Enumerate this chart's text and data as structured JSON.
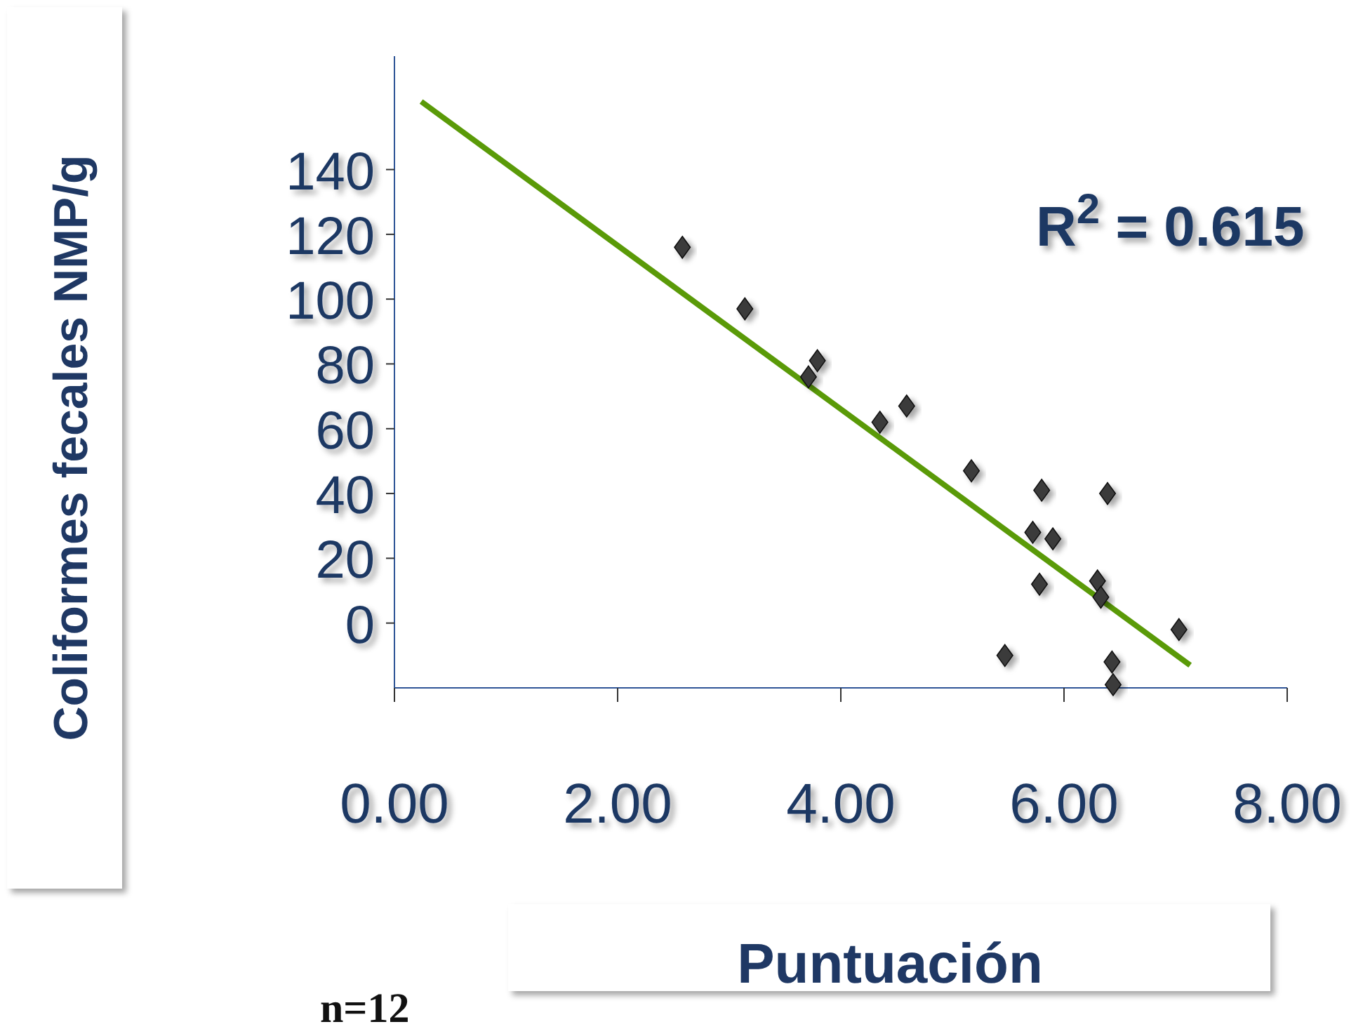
{
  "chart_data": {
    "type": "scatter",
    "xlabel": "Puntuación",
    "ylabel": "Coliformes fecales NMP/g",
    "annotations": [
      "R$^{2}$ = 0.615",
      "n=12"
    ],
    "xlim": [
      0,
      8
    ],
    "ylim": [
      -20,
      175
    ],
    "xticks": [
      {
        "value": 0,
        "label": "0.00"
      },
      {
        "value": 2,
        "label": "2.00"
      },
      {
        "value": 4,
        "label": "4.00"
      },
      {
        "value": 6,
        "label": "6.00"
      },
      {
        "value": 8,
        "label": "8.00"
      }
    ],
    "yticks": [
      0,
      20,
      40,
      60,
      80,
      100,
      120,
      140
    ],
    "grid": false,
    "series": [
      {
        "color": "#3a3a3a",
        "marker": "diamond",
        "x": [
          2.58,
          3.14,
          3.79,
          3.71,
          4.35,
          4.59,
          5.17,
          5.8,
          5.72,
          5.9,
          5.78,
          6.39,
          6.3,
          6.33,
          7.03,
          5.47,
          6.43,
          6.44
        ],
        "values": [
          116,
          97,
          81,
          76,
          62,
          67,
          47,
          41,
          28,
          26,
          12,
          40,
          13,
          8,
          -2,
          -10,
          -12,
          -19
        ]
      },
      {
        "type": "line",
        "color": "#5a9a08",
        "marker": "none",
        "line_style": "solid",
        "x": [
          0.24,
          7.13
        ],
        "values": [
          161,
          -13
        ]
      }
    ]
  }
}
